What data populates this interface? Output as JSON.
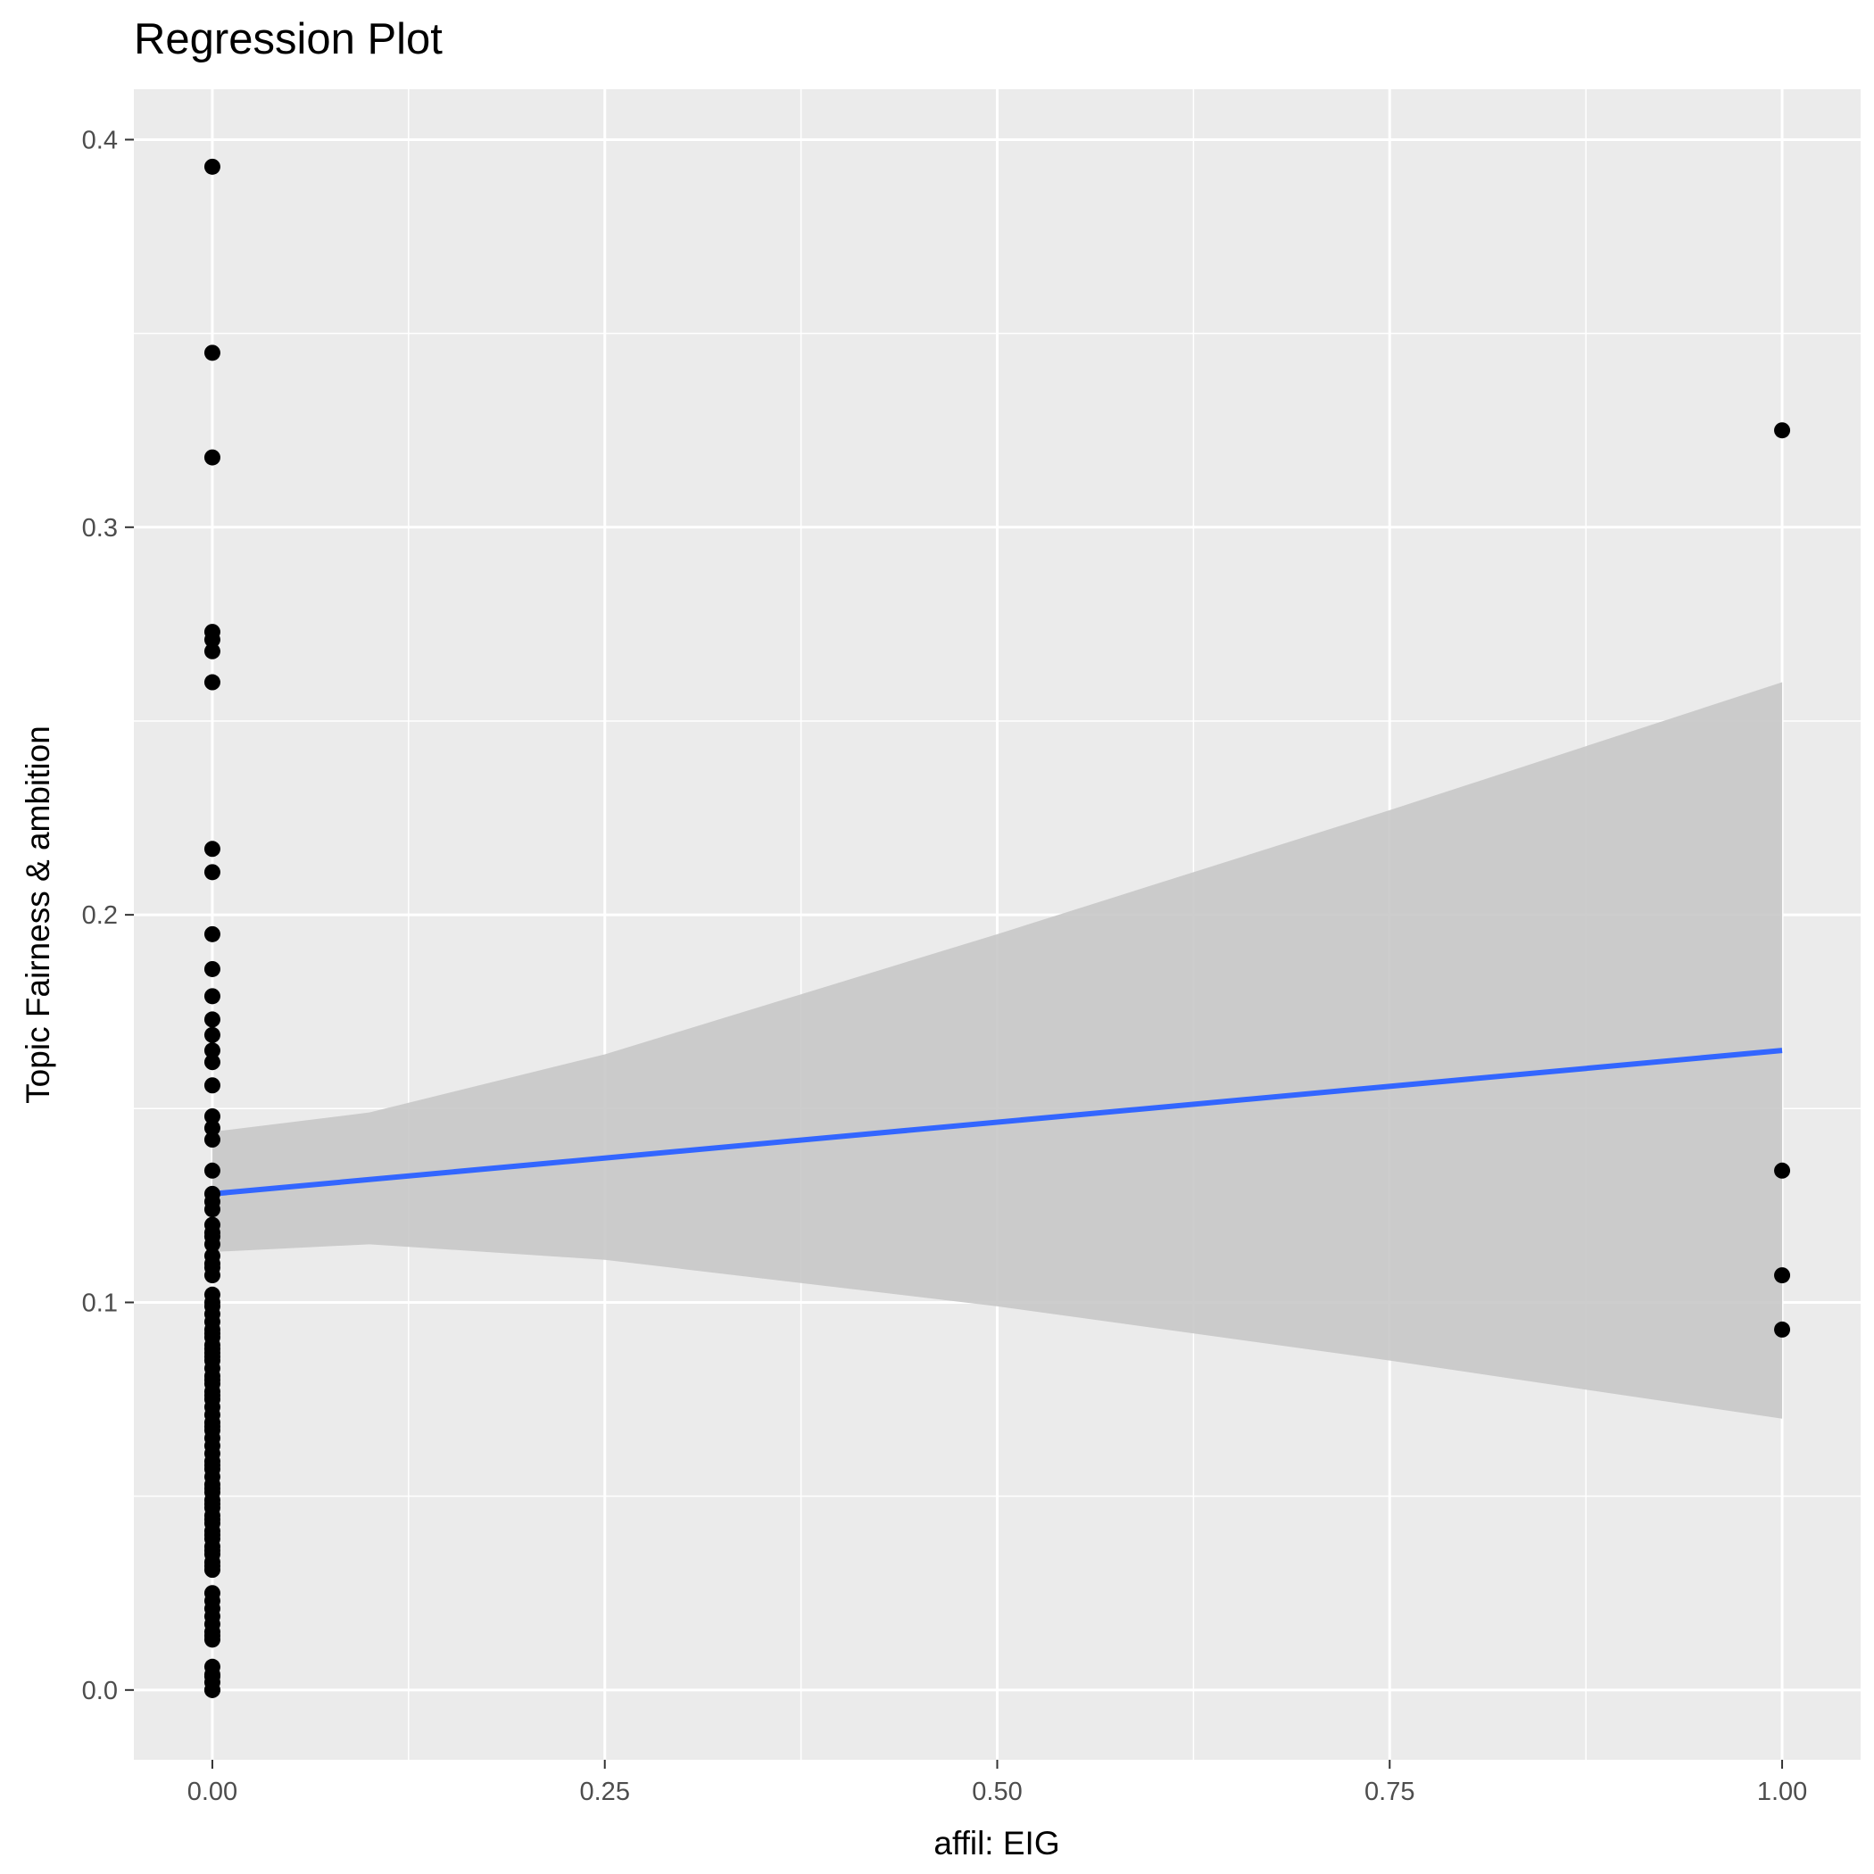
{
  "chart_data": {
    "type": "scatter",
    "title": "Regression Plot",
    "xlabel": "affil: EIG",
    "ylabel": "Topic Fairness & ambition",
    "xlim": [
      -0.05,
      1.05
    ],
    "ylim": [
      -0.018,
      0.413
    ],
    "x_ticks": [
      0.0,
      0.25,
      0.5,
      0.75,
      1.0
    ],
    "x_tick_labels": [
      "0.00",
      "0.25",
      "0.50",
      "0.75",
      "1.00"
    ],
    "y_ticks": [
      0.0,
      0.1,
      0.2,
      0.3,
      0.4
    ],
    "y_tick_labels": [
      "0.0",
      "0.1",
      "0.2",
      "0.3",
      "0.4"
    ],
    "grid": true,
    "legend": "none",
    "colors": {
      "panel_background": "#ebebeb",
      "grid_line": "#ffffff",
      "points": "#000000",
      "regression_line": "#3366ff",
      "confidence_band": "#c8c8c8"
    },
    "points": {
      "x": [
        0,
        0,
        0,
        0,
        0,
        0,
        0,
        0,
        0,
        0,
        0,
        0,
        0,
        0,
        0,
        0,
        0,
        0,
        0,
        0,
        0,
        0,
        0,
        0,
        0,
        0,
        0,
        0,
        0,
        0,
        0,
        0,
        0,
        0,
        0,
        0,
        0,
        0,
        0,
        0,
        0,
        0,
        0,
        0,
        0,
        0,
        0,
        0,
        0,
        0,
        0,
        0,
        0,
        0,
        0,
        0,
        0,
        0,
        0,
        0,
        0,
        0,
        0,
        0,
        0,
        0,
        0,
        0,
        0,
        0,
        0,
        0,
        0,
        0,
        0,
        0,
        0,
        0,
        0,
        0,
        0,
        0,
        0,
        0,
        0,
        0,
        0,
        0,
        0,
        0,
        0,
        0,
        0,
        0,
        0,
        0,
        1,
        1,
        1,
        1
      ],
      "y": [
        0.393,
        0.345,
        0.318,
        0.273,
        0.271,
        0.268,
        0.26,
        0.217,
        0.211,
        0.195,
        0.186,
        0.179,
        0.173,
        0.169,
        0.165,
        0.162,
        0.156,
        0.148,
        0.145,
        0.142,
        0.134,
        0.128,
        0.126,
        0.124,
        0.12,
        0.117,
        0.115,
        0.112,
        0.109,
        0.107,
        0.1,
        0.097,
        0.095,
        0.093,
        0.091,
        0.089,
        0.087,
        0.085,
        0.083,
        0.081,
        0.079,
        0.077,
        0.075,
        0.073,
        0.071,
        0.069,
        0.067,
        0.065,
        0.063,
        0.061,
        0.059,
        0.057,
        0.055,
        0.053,
        0.051,
        0.049,
        0.047,
        0.045,
        0.043,
        0.041,
        0.039,
        0.037,
        0.035,
        0.033,
        0.031,
        0.025,
        0.023,
        0.021,
        0.019,
        0.017,
        0.015,
        0.013,
        0.006,
        0.004,
        0.002,
        0.0,
        0.099,
        0.092,
        0.088,
        0.086,
        0.08,
        0.076,
        0.068,
        0.058,
        0.048,
        0.044,
        0.04,
        0.036,
        0.032,
        0.014,
        0.118,
        0.11,
        0.102,
        0.052,
        0.0035,
        0.0,
        0.325,
        0.134,
        0.107,
        0.093
      ]
    },
    "regression": {
      "x": [
        0,
        1
      ],
      "y": [
        0.128,
        0.165
      ]
    },
    "confidence_band": {
      "x": [
        0,
        0.1,
        0.25,
        0.5,
        0.75,
        1.0
      ],
      "lower": [
        0.113,
        0.115,
        0.111,
        0.099,
        0.085,
        0.07
      ],
      "upper": [
        0.144,
        0.149,
        0.164,
        0.195,
        0.227,
        0.26
      ]
    }
  }
}
